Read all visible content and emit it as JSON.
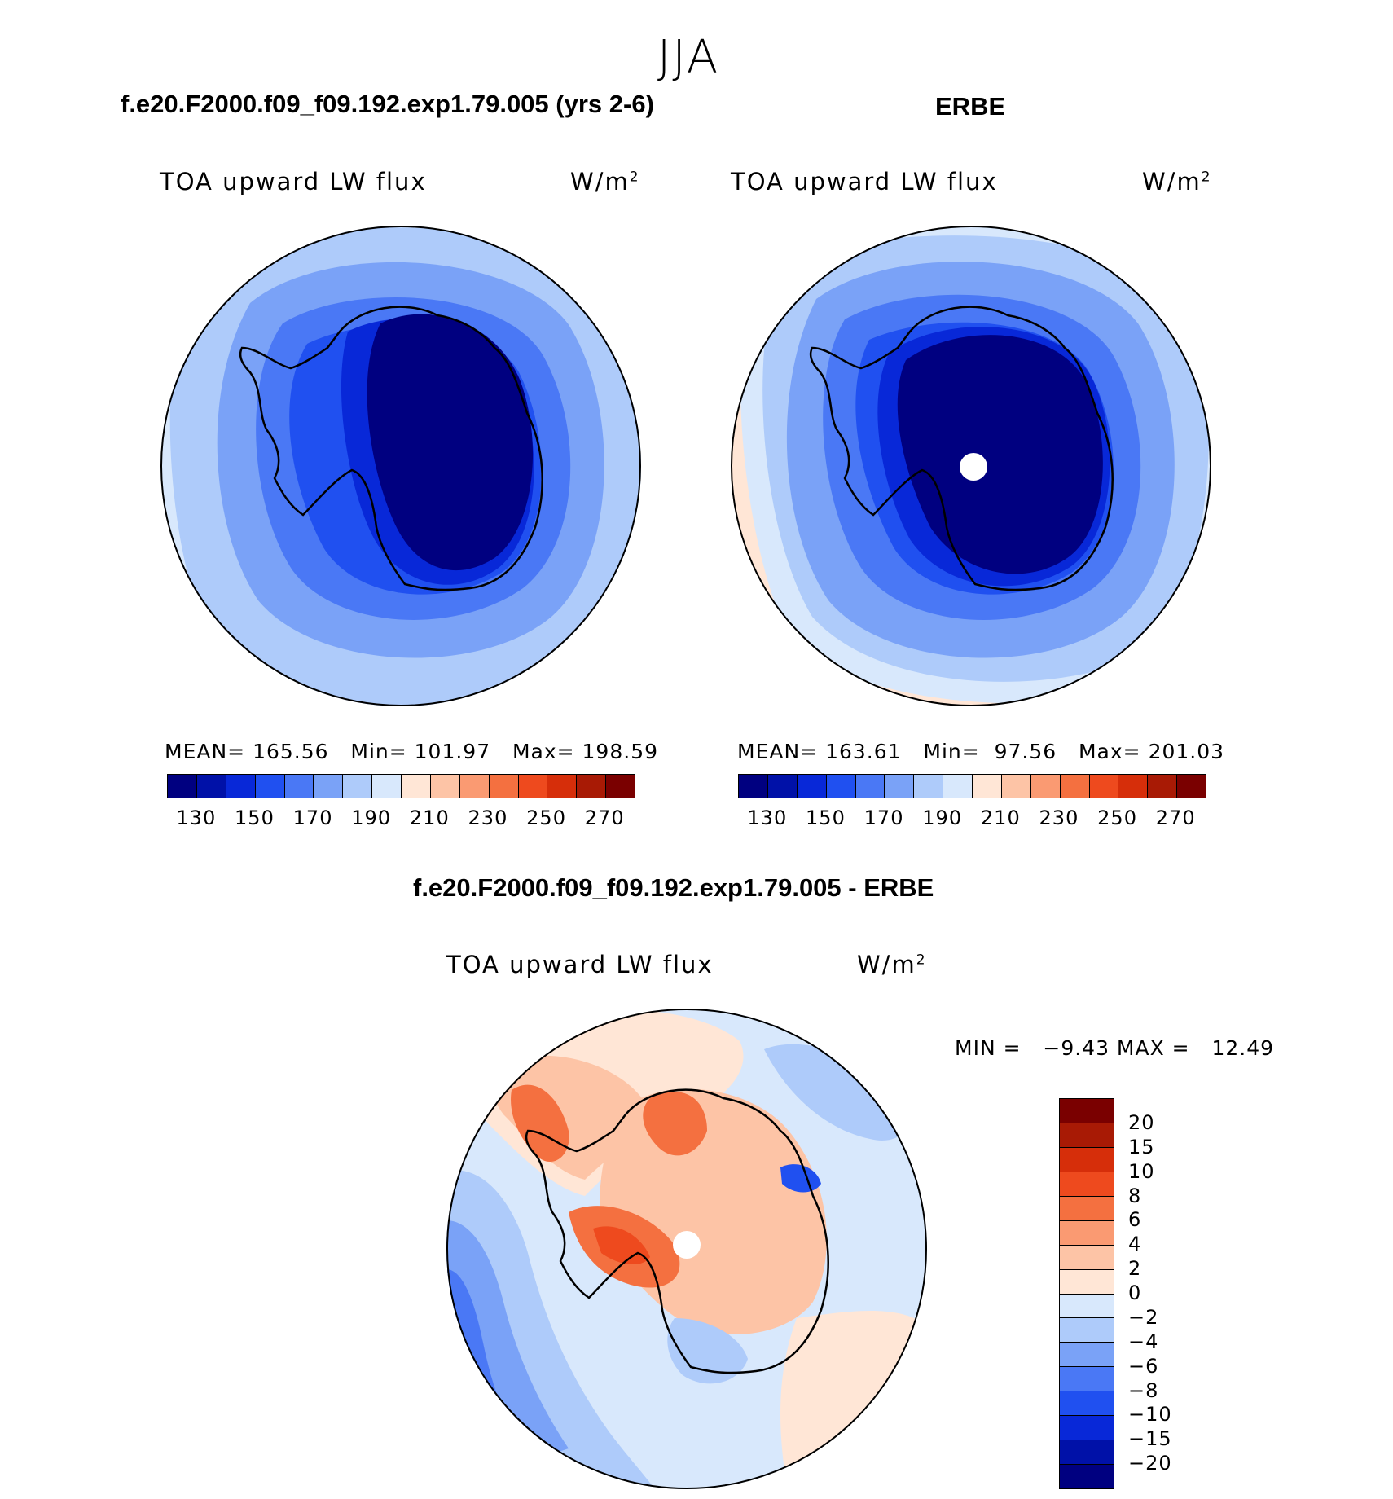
{
  "season": "JJA",
  "panels": [
    {
      "title": "f.e20.F2000.f09_f09.192.exp1.79.005 (yrs 2-6)",
      "variable": "TOA upward LW flux",
      "units": "W/m",
      "units_sup": "2",
      "stats": "MEAN= 165.56   Min= 101.97   Max= 198.59"
    },
    {
      "title": "ERBE",
      "variable": "TOA upward LW flux",
      "units": "W/m",
      "units_sup": "2",
      "stats": "MEAN= 163.61   Min=  97.56   Max= 201.03"
    }
  ],
  "diff_panel": {
    "title": "f.e20.F2000.f09_f09.192.exp1.79.005 - ERBE",
    "variable": "TOA upward LW flux",
    "units": "W/m",
    "units_sup": "2",
    "stats": "MIN =   −9.43 MAX =   12.49"
  },
  "abs_colorbar": {
    "colors": [
      "#000080",
      "#0011a8",
      "#0828d8",
      "#2050f0",
      "#4a78f5",
      "#7aa2f7",
      "#aecbfa",
      "#d8e8fc",
      "#ffe6d6",
      "#fdc4a6",
      "#fa9a72",
      "#f47040",
      "#ee4a1e",
      "#d62e0a",
      "#a81a05",
      "#7a0000"
    ],
    "tick_labels": [
      "130",
      "150",
      "170",
      "190",
      "210",
      "230",
      "250",
      "270"
    ]
  },
  "diff_colorbar": {
    "colors": [
      "#7a0000",
      "#a81a05",
      "#d62e0a",
      "#ee4a1e",
      "#f47040",
      "#fa9a72",
      "#fdc4a6",
      "#ffe6d6",
      "#d8e8fc",
      "#aecbfa",
      "#7aa2f7",
      "#4a78f5",
      "#2050f0",
      "#0828d8",
      "#0011a8",
      "#000080"
    ],
    "tick_labels": [
      "20",
      "15",
      "10",
      "8",
      "6",
      "4",
      "2",
      "0",
      "−2",
      "−4",
      "−6",
      "−8",
      "−10",
      "−15",
      "−20"
    ]
  },
  "chart_data": [
    {
      "type": "heatmap",
      "title": "f.e20.F2000.f09_f09.192.exp1.79.005 (yrs 2-6)",
      "projection": "south polar stereographic",
      "variable": "TOA upward LW flux",
      "units": "W/m2",
      "mean": 165.56,
      "min": 101.97,
      "max": 198.59,
      "contour_levels": [
        130,
        140,
        150,
        160,
        170,
        180,
        190,
        200,
        210,
        220,
        230,
        240,
        250,
        260,
        270
      ],
      "pattern": "values lowest (<130) over East Antarctic plateau, increasing outward to ~190-200 near outer circle"
    },
    {
      "type": "heatmap",
      "title": "ERBE",
      "projection": "south polar stereographic",
      "variable": "TOA upward LW flux",
      "units": "W/m2",
      "mean": 163.61,
      "min": 97.56,
      "max": 201.03,
      "contour_levels": [
        130,
        140,
        150,
        160,
        170,
        180,
        190,
        200,
        210,
        220,
        230,
        240,
        250,
        260,
        270
      ],
      "pattern": "values lowest over Antarctica with missing data at pole, increasing to ~200-210 near outer circle"
    },
    {
      "type": "heatmap",
      "title": "f.e20.F2000.f09_f09.192.exp1.79.005 - ERBE",
      "projection": "south polar stereographic",
      "variable": "TOA upward LW flux",
      "units": "W/m2",
      "min": -9.43,
      "max": 12.49,
      "contour_levels": [
        -20,
        -15,
        -10,
        -8,
        -6,
        -4,
        -2,
        0,
        2,
        4,
        6,
        8,
        10,
        15,
        20
      ],
      "pattern": "positive (red) differences over Antarctic interior and Weddell/Ross regions; negative (blue) differences over surrounding ocean, especially lower-left"
    }
  ]
}
